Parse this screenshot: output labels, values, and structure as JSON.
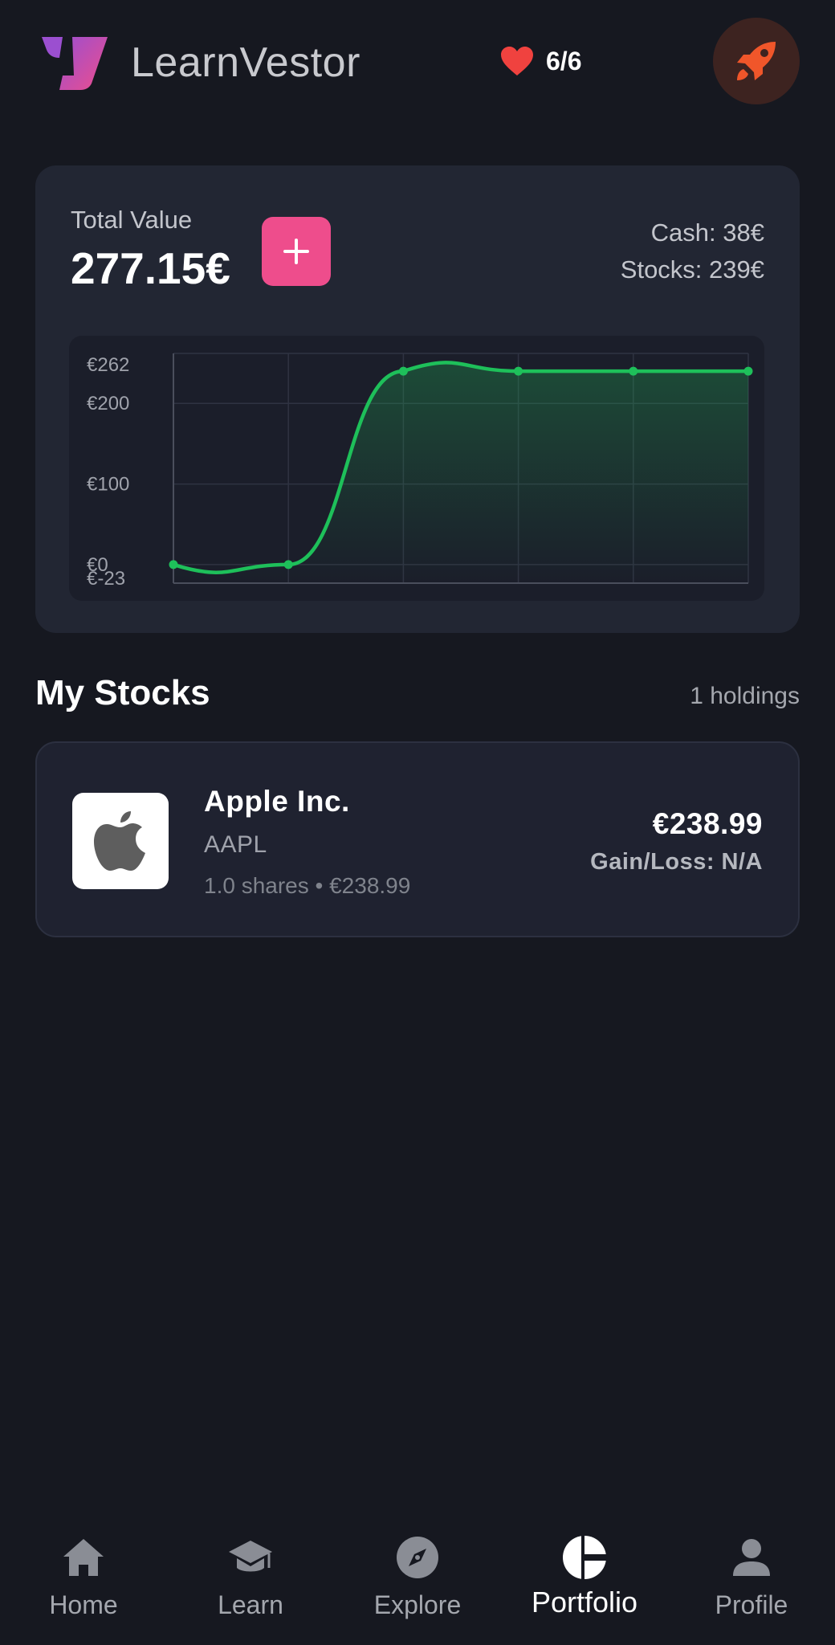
{
  "header": {
    "app_name": "LearnVestor",
    "lives": "6/6",
    "logo_icon": "learnvestor-logo-icon",
    "lives_icon": "heart-icon",
    "boost_icon": "rocket-icon"
  },
  "portfolio": {
    "total_label": "Total Value",
    "total_value": "277.15€",
    "add_icon": "plus-icon",
    "cash": "Cash: 38€",
    "stocks": "Stocks: 239€"
  },
  "chart_data": {
    "type": "line",
    "y_ticks": [
      "€262",
      "€200",
      "€100",
      "€0",
      "€-23"
    ],
    "ylim": [
      -23,
      262
    ],
    "values": [
      0,
      0,
      240,
      240,
      240,
      240
    ],
    "grid": true,
    "line_color": "#1ec05a"
  },
  "stocks_section": {
    "title": "My Stocks",
    "holdings": "1 holdings",
    "items": [
      {
        "name": "Apple Inc.",
        "ticker": "AAPL",
        "shares": "1.0 shares • €238.99",
        "value": "€238.99",
        "gain_loss": "Gain/Loss: N/A",
        "logo_icon": "apple-logo-icon"
      }
    ]
  },
  "nav": {
    "items": [
      {
        "label": "Home",
        "icon": "home-icon"
      },
      {
        "label": "Learn",
        "icon": "graduation-cap-icon"
      },
      {
        "label": "Explore",
        "icon": "compass-icon"
      },
      {
        "label": "Portfolio",
        "icon": "pie-chart-icon",
        "active": true
      },
      {
        "label": "Profile",
        "icon": "user-icon"
      }
    ]
  },
  "colors": {
    "background": "#161820",
    "card": "#222633",
    "accent_pink": "#ee4d8c",
    "chart_green": "#1ec05a",
    "heart_red": "#f0423f",
    "rocket_orange": "#f0562a"
  }
}
